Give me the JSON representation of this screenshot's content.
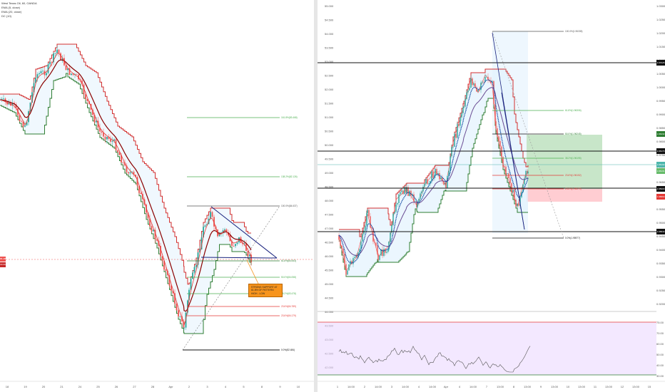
{
  "left_chart": {
    "legend": [
      "West Texas Oil, 60, OANDA",
      "EMA (5, close)",
      "EMA (20, close)",
      "DC (10)"
    ],
    "x_ticks": [
      "18",
      "19",
      "20",
      "21",
      "24",
      "25",
      "26",
      "27",
      "28",
      "Apr",
      "2",
      "3",
      "4",
      "5",
      "8",
      "9",
      "10"
    ],
    "fib_labels": [
      "161.8%(83.468)",
      "138.2%(82.126)",
      "100.0%(84.637)",
      "61.8%(84.063)",
      "50.0%(84.058)",
      "38.2%(83.478)",
      "23.6%(84.789)",
      "23.6%(84.179)",
      "0.0%(82.484)"
    ],
    "callout_text": "STRONG SUPPORT AT 61.8% OF PATTERN HIGH - LOW",
    "price_tags": [
      "85.485",
      "00:39"
    ],
    "colors": {
      "up": "#26a69a",
      "down": "#ef5350",
      "ema5": "#c62828",
      "ema20": "#8b0000",
      "dc_upper": "#d32f2f",
      "dc_lower": "#2e7d32",
      "fib_green": "#4caf50",
      "fib_red": "#e53935",
      "callout": "#f7941d"
    }
  },
  "right_chart": {
    "y_left_ticks": [
      "55.000",
      "54.500",
      "54.000",
      "53.500",
      "53.000",
      "52.500",
      "52.000",
      "51.500",
      "51.000",
      "50.500",
      "50.000",
      "49.500",
      "49.000",
      "48.500",
      "48.000",
      "47.500",
      "47.000",
      "46.500",
      "46.000",
      "45.500",
      "45.000",
      "44.500",
      "44.000",
      "43.500",
      "43.000",
      "42.500",
      "42.000"
    ],
    "y_right_ticks": [
      "1.0300",
      "1.0250",
      "1.0200",
      "1.0150",
      "1.0100",
      "1.0050",
      "1.0000",
      "0.9950",
      "0.9900",
      "0.9850",
      "0.9800",
      "0.9750",
      "0.9700",
      "0.9650",
      "0.9600",
      "0.9550",
      "0.9500",
      "0.9450",
      "0.9400",
      "0.9350",
      "0.9300",
      "0.9250",
      "0.9200"
    ],
    "rsi_ticks": [
      "75.00",
      "70.00",
      "60.00",
      "50.00",
      "40.00",
      "30.00"
    ],
    "x_ticks": [
      "1",
      "14:00",
      "2",
      "14:00",
      "3",
      "14:00",
      "4",
      "14:00",
      "Apr",
      "4",
      "14:00",
      "7",
      "13:00",
      "8",
      "13:00",
      "9",
      "13:00",
      "10",
      "13:00",
      "11",
      "13:00",
      "12",
      "13:00",
      "15"
    ],
    "fib_labels": [
      "100.0%(1.96335)",
      "61.8%(1.96306)",
      "50.0%(1.96245)",
      "38.2%(1.96195)",
      "23.6%(1.96152)",
      "23.6%(1.96070)",
      "0.0%(1.95977)"
    ],
    "price_tags": [
      "1.97025",
      "1.96432",
      "1.96173",
      "1.96102",
      "1.96131",
      "1.95900",
      "1.95860",
      "1.95843"
    ],
    "colors": {
      "dc_upper": "#d32f2f",
      "dc_lower": "#2e7d32",
      "ema": "#0d47a1",
      "ema_slow": "#6a4c93",
      "rsi": "#555555",
      "rsi_band": "#e9d5ff",
      "long_profit": "#c8e6c9",
      "long_loss": "#ffcdd2",
      "black_level": "#111111"
    }
  }
}
